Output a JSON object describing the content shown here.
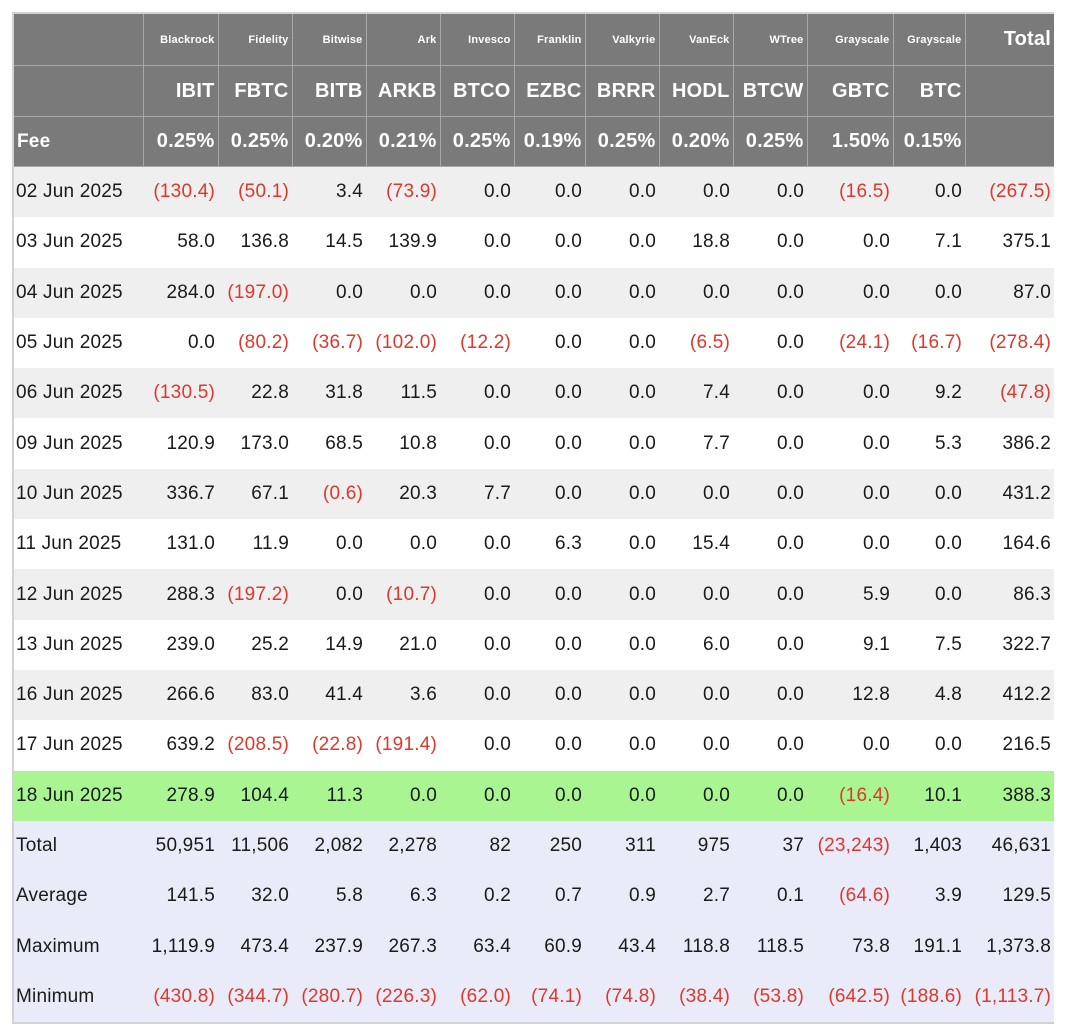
{
  "columns": [
    {
      "issuer": "Blackrock",
      "ticker": "IBIT",
      "fee": "0.25%"
    },
    {
      "issuer": "Fidelity",
      "ticker": "FBTC",
      "fee": "0.25%"
    },
    {
      "issuer": "Bitwise",
      "ticker": "BITB",
      "fee": "0.20%"
    },
    {
      "issuer": "Ark",
      "ticker": "ARKB",
      "fee": "0.21%"
    },
    {
      "issuer": "Invesco",
      "ticker": "BTCO",
      "fee": "0.25%"
    },
    {
      "issuer": "Franklin",
      "ticker": "EZBC",
      "fee": "0.19%"
    },
    {
      "issuer": "Valkyrie",
      "ticker": "BRRR",
      "fee": "0.25%"
    },
    {
      "issuer": "VanEck",
      "ticker": "HODL",
      "fee": "0.20%"
    },
    {
      "issuer": "WTree",
      "ticker": "BTCW",
      "fee": "0.25%"
    },
    {
      "issuer": "Grayscale",
      "ticker": "GBTC",
      "fee": "1.50%"
    },
    {
      "issuer": "Grayscale",
      "ticker": "BTC",
      "fee": "0.15%"
    }
  ],
  "total_header": "Total",
  "fee_label": "Fee",
  "rows": [
    {
      "date": "02 Jun 2025",
      "values": [
        "(130.4)",
        "(50.1)",
        "3.4",
        "(73.9)",
        "0.0",
        "0.0",
        "0.0",
        "0.0",
        "0.0",
        "(16.5)",
        "0.0",
        "(267.5)"
      ]
    },
    {
      "date": "03 Jun 2025",
      "values": [
        "58.0",
        "136.8",
        "14.5",
        "139.9",
        "0.0",
        "0.0",
        "0.0",
        "18.8",
        "0.0",
        "0.0",
        "7.1",
        "375.1"
      ]
    },
    {
      "date": "04 Jun 2025",
      "values": [
        "284.0",
        "(197.0)",
        "0.0",
        "0.0",
        "0.0",
        "0.0",
        "0.0",
        "0.0",
        "0.0",
        "0.0",
        "0.0",
        "87.0"
      ]
    },
    {
      "date": "05 Jun 2025",
      "values": [
        "0.0",
        "(80.2)",
        "(36.7)",
        "(102.0)",
        "(12.2)",
        "0.0",
        "0.0",
        "(6.5)",
        "0.0",
        "(24.1)",
        "(16.7)",
        "(278.4)"
      ]
    },
    {
      "date": "06 Jun 2025",
      "values": [
        "(130.5)",
        "22.8",
        "31.8",
        "11.5",
        "0.0",
        "0.0",
        "0.0",
        "7.4",
        "0.0",
        "0.0",
        "9.2",
        "(47.8)"
      ]
    },
    {
      "date": "09 Jun 2025",
      "values": [
        "120.9",
        "173.0",
        "68.5",
        "10.8",
        "0.0",
        "0.0",
        "0.0",
        "7.7",
        "0.0",
        "0.0",
        "5.3",
        "386.2"
      ]
    },
    {
      "date": "10 Jun 2025",
      "values": [
        "336.7",
        "67.1",
        "(0.6)",
        "20.3",
        "7.7",
        "0.0",
        "0.0",
        "0.0",
        "0.0",
        "0.0",
        "0.0",
        "431.2"
      ]
    },
    {
      "date": "11 Jun 2025",
      "values": [
        "131.0",
        "11.9",
        "0.0",
        "0.0",
        "0.0",
        "6.3",
        "0.0",
        "15.4",
        "0.0",
        "0.0",
        "0.0",
        "164.6"
      ]
    },
    {
      "date": "12 Jun 2025",
      "values": [
        "288.3",
        "(197.2)",
        "0.0",
        "(10.7)",
        "0.0",
        "0.0",
        "0.0",
        "0.0",
        "0.0",
        "5.9",
        "0.0",
        "86.3"
      ]
    },
    {
      "date": "13 Jun 2025",
      "values": [
        "239.0",
        "25.2",
        "14.9",
        "21.0",
        "0.0",
        "0.0",
        "0.0",
        "6.0",
        "0.0",
        "9.1",
        "7.5",
        "322.7"
      ]
    },
    {
      "date": "16 Jun 2025",
      "values": [
        "266.6",
        "83.0",
        "41.4",
        "3.6",
        "0.0",
        "0.0",
        "0.0",
        "0.0",
        "0.0",
        "12.8",
        "4.8",
        "412.2"
      ]
    },
    {
      "date": "17 Jun 2025",
      "values": [
        "639.2",
        "(208.5)",
        "(22.8)",
        "(191.4)",
        "0.0",
        "0.0",
        "0.0",
        "0.0",
        "0.0",
        "0.0",
        "0.0",
        "216.5"
      ]
    },
    {
      "date": "18 Jun 2025",
      "values": [
        "278.9",
        "104.4",
        "11.3",
        "0.0",
        "0.0",
        "0.0",
        "0.0",
        "0.0",
        "0.0",
        "(16.4)",
        "10.1",
        "388.3"
      ],
      "highlight": true
    }
  ],
  "stats": [
    {
      "label": "Total",
      "values": [
        "50,951",
        "11,506",
        "2,082",
        "2,278",
        "82",
        "250",
        "311",
        "975",
        "37",
        "(23,243)",
        "1,403",
        "46,631"
      ]
    },
    {
      "label": "Average",
      "values": [
        "141.5",
        "32.0",
        "5.8",
        "6.3",
        "0.2",
        "0.7",
        "0.9",
        "2.7",
        "0.1",
        "(64.6)",
        "3.9",
        "129.5"
      ]
    },
    {
      "label": "Maximum",
      "values": [
        "1,119.9",
        "473.4",
        "237.9",
        "267.3",
        "63.4",
        "60.9",
        "43.4",
        "118.8",
        "118.5",
        "73.8",
        "191.1",
        "1,373.8"
      ]
    },
    {
      "label": "Minimum",
      "values": [
        "(430.8)",
        "(344.7)",
        "(280.7)",
        "(226.3)",
        "(62.0)",
        "(74.1)",
        "(74.8)",
        "(38.4)",
        "(53.8)",
        "(642.5)",
        "(188.6)",
        "(1,113.7)"
      ]
    }
  ],
  "colors": {
    "header_bg": "#7a7a7a",
    "row_gray": "#efefef",
    "row_highlight": "#a9f592",
    "stats_bg": "#e9ecf8",
    "negative": "#e0362c"
  }
}
